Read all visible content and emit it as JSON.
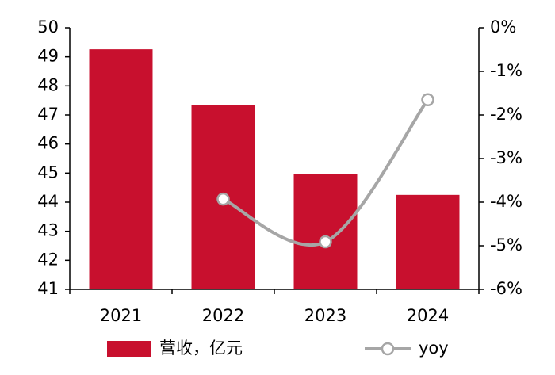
{
  "chart_data": {
    "type": "bar-line",
    "categories": [
      "2021",
      "2022",
      "2023",
      "2024"
    ],
    "series": [
      {
        "name": "营收，亿元",
        "type": "bar",
        "color": "#c8102e",
        "values": [
          49.26,
          47.33,
          44.98,
          44.25
        ]
      },
      {
        "name": "yoy",
        "type": "line",
        "axis": "y2",
        "color": "#a6a6a6",
        "values": [
          null,
          -3.93,
          -4.91,
          -1.65
        ]
      }
    ],
    "ylim": [
      41,
      50
    ],
    "yticks": [
      41,
      42,
      43,
      44,
      45,
      46,
      47,
      48,
      49,
      50
    ],
    "y2lim": [
      -6,
      0
    ],
    "y2ticks": [
      {
        "value": -6,
        "label": "-6%"
      },
      {
        "value": -5,
        "label": "-5%"
      },
      {
        "value": -4,
        "label": "-4%"
      },
      {
        "value": -3,
        "label": "-3%"
      },
      {
        "value": -2,
        "label": "-2%"
      },
      {
        "value": -1,
        "label": "-1%"
      },
      {
        "value": 0,
        "label": "0%"
      }
    ],
    "grid": false,
    "legend": "bottom"
  }
}
